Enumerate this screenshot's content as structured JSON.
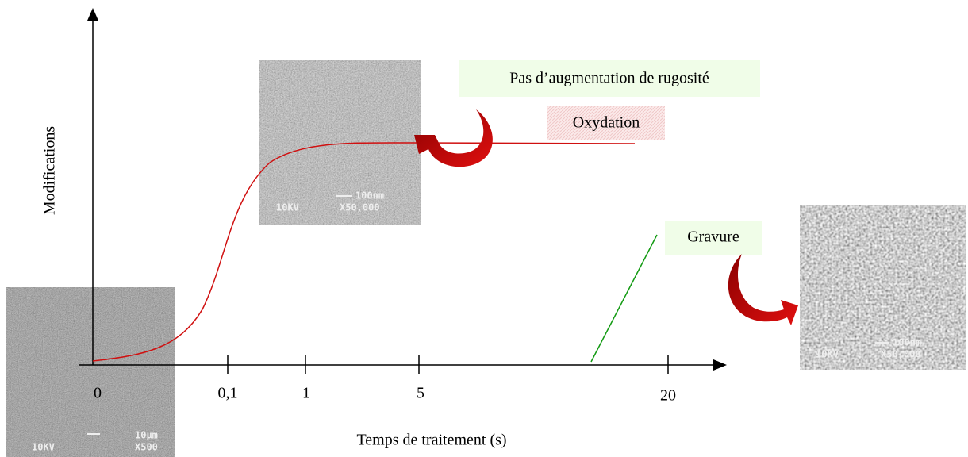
{
  "axes": {
    "y_label": "Modifications",
    "x_label": "Temps de traitement (s)",
    "x_ticks": [
      "0",
      "0,1",
      "1",
      "5",
      "20"
    ]
  },
  "annotations": {
    "no_roughness": "Pas d’augmentation de rugosité",
    "oxidation": "Oxydation",
    "etching": "Gravure"
  },
  "images": [
    {
      "voltage": "10KV",
      "scale": "10µm",
      "magnification": "X500"
    },
    {
      "voltage": "10KV",
      "scale": "100nm",
      "magnification": "X50,000"
    },
    {
      "voltage": "10KV",
      "scale": "100nm",
      "magnification": "X50,000"
    }
  ]
}
